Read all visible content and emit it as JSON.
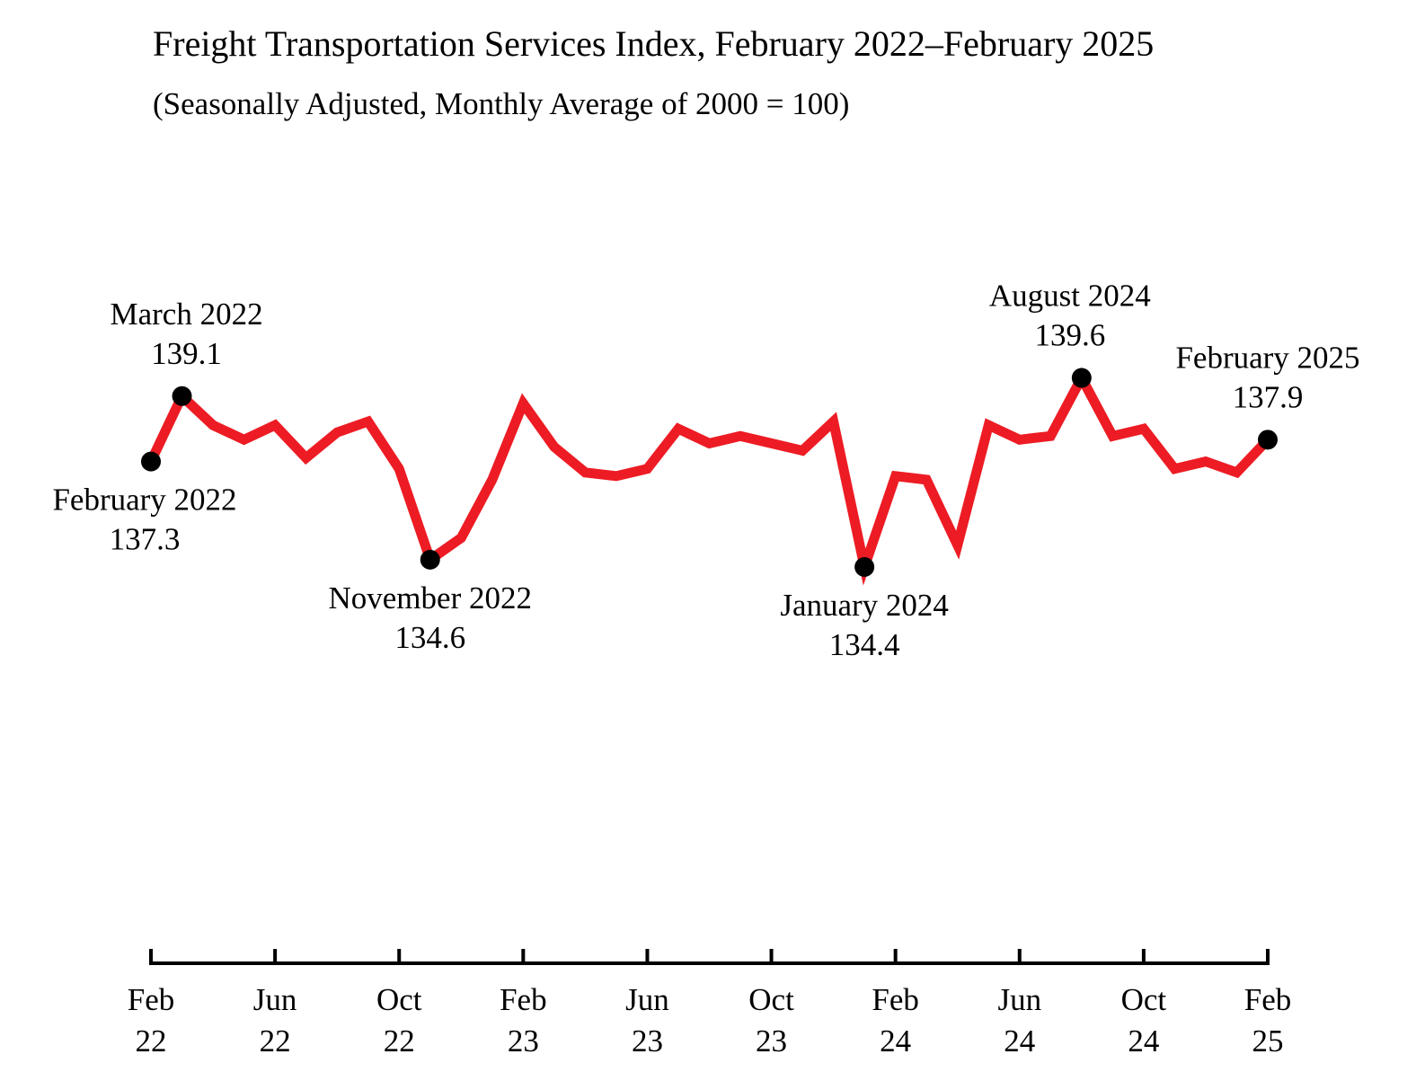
{
  "chart_data": {
    "type": "line",
    "title": "Freight Transportation Services Index, February 2022–February 2025",
    "subtitle": "(Seasonally Adjusted, Monthly Average of 2000 = 100)",
    "xlabel": "",
    "ylabel": "",
    "ylim": [
      128.0,
      145.0
    ],
    "grid": false,
    "legend": "none",
    "series": [
      {
        "name": "Freight Transportation Services Index",
        "color": "#ed1c24",
        "x": [
          "Feb 2022",
          "Mar 2022",
          "Apr 2022",
          "May 2022",
          "Jun 2022",
          "Jul 2022",
          "Aug 2022",
          "Sep 2022",
          "Oct 2022",
          "Nov 2022",
          "Dec 2022",
          "Jan 2023",
          "Feb 2023",
          "Mar 2023",
          "Apr 2023",
          "May 2023",
          "Jun 2023",
          "Jul 2023",
          "Aug 2023",
          "Sep 2023",
          "Oct 2023",
          "Nov 2023",
          "Dec 2023",
          "Jan 2024",
          "Feb 2024",
          "Mar 2024",
          "Apr 2024",
          "May 2024",
          "Jun 2024",
          "Jul 2024",
          "Aug 2024",
          "Sep 2024",
          "Oct 2024",
          "Nov 2024",
          "Dec 2024",
          "Jan 2025",
          "Feb 2025"
        ],
        "values": [
          137.3,
          139.1,
          138.3,
          137.9,
          138.3,
          137.4,
          138.1,
          138.4,
          137.1,
          134.6,
          135.2,
          136.8,
          138.9,
          137.7,
          137.0,
          136.9,
          137.1,
          138.2,
          137.8,
          138.0,
          137.8,
          137.6,
          138.4,
          134.4,
          136.9,
          136.8,
          135.0,
          138.3,
          137.9,
          138.0,
          139.6,
          138.0,
          138.2,
          137.1,
          137.3,
          137.0,
          137.9
        ]
      }
    ],
    "x_ticks": [
      {
        "month": "Feb",
        "year": "22",
        "index": 0
      },
      {
        "month": "Jun",
        "year": "22",
        "index": 4
      },
      {
        "month": "Oct",
        "year": "22",
        "index": 8
      },
      {
        "month": "Feb",
        "year": "23",
        "index": 12
      },
      {
        "month": "Jun",
        "year": "23",
        "index": 16
      },
      {
        "month": "Oct",
        "year": "23",
        "index": 20
      },
      {
        "month": "Feb",
        "year": "24",
        "index": 24
      },
      {
        "month": "Jun",
        "year": "24",
        "index": 28
      },
      {
        "month": "Oct",
        "year": "24",
        "index": 32
      },
      {
        "month": "Feb",
        "year": "25",
        "index": 36
      }
    ],
    "annotations": [
      {
        "index": 0,
        "label": "February 2022",
        "value": "137.3",
        "placement": "below"
      },
      {
        "index": 1,
        "label": "March 2022",
        "value": "139.1",
        "placement": "above"
      },
      {
        "index": 9,
        "label": "November 2022",
        "value": "134.6",
        "placement": "below"
      },
      {
        "index": 23,
        "label": "January 2024",
        "value": "134.4",
        "placement": "below"
      },
      {
        "index": 30,
        "label": "August 2024",
        "value": "139.6",
        "placement": "above"
      },
      {
        "index": 36,
        "label": "February 2025",
        "value": "137.9",
        "placement": "above"
      }
    ]
  }
}
